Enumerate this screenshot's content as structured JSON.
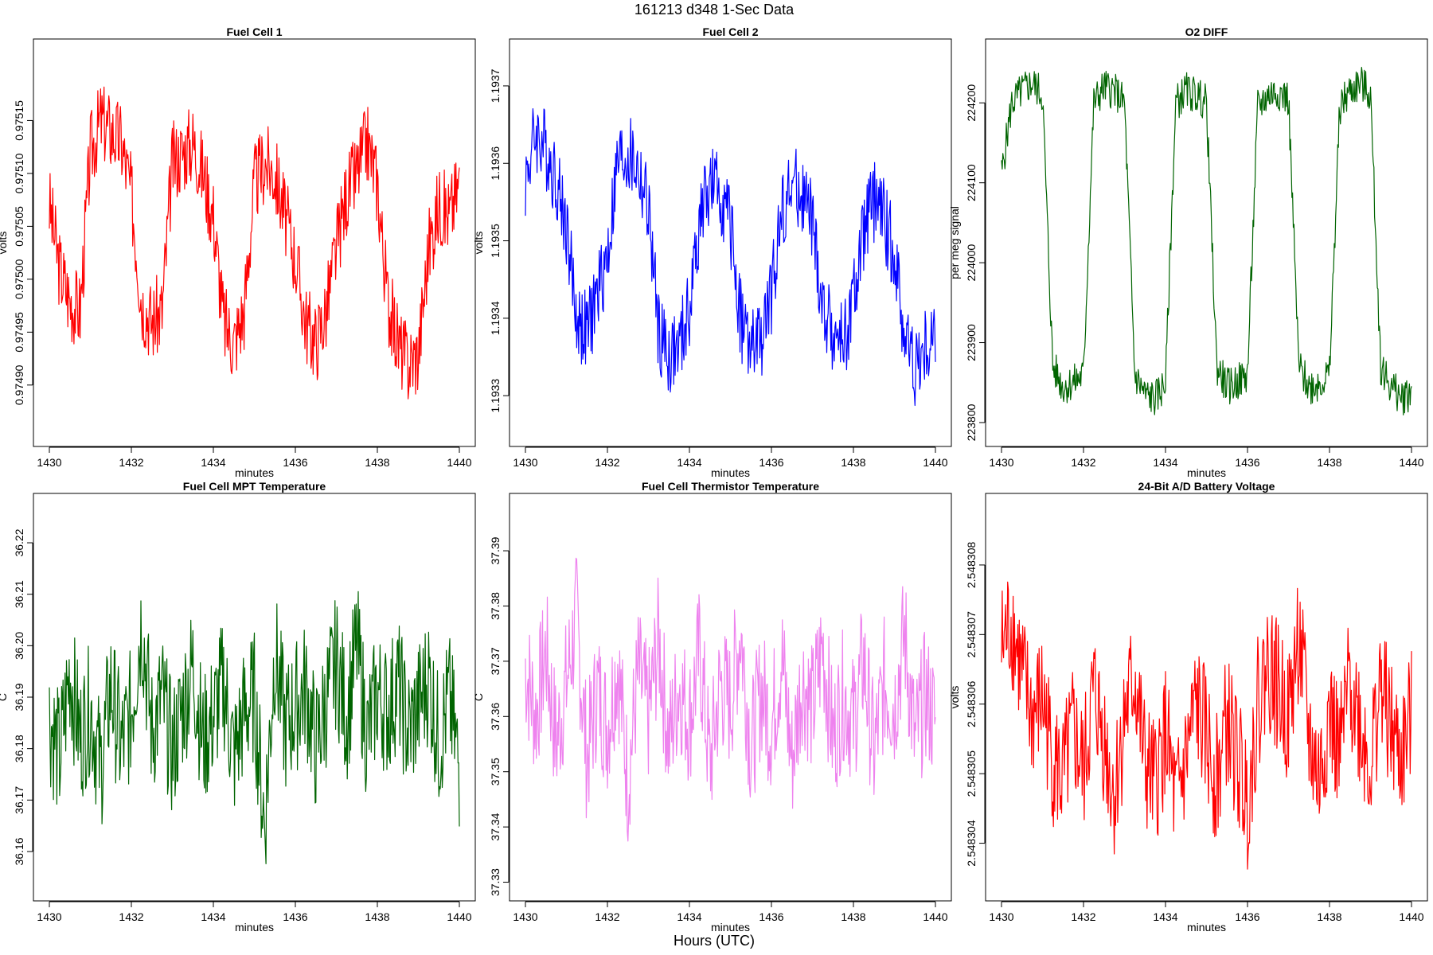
{
  "figure": {
    "title": "161213   d348   1-Sec Data",
    "xcaption": "Hours (UTC)"
  },
  "chart_data": [
    {
      "type": "line",
      "title": "Fuel Cell 1",
      "xlabel": "minutes",
      "ylabel": "volts",
      "color": "#ff0000",
      "xlim": [
        1430,
        1440
      ],
      "ylim": [
        0.974857,
        0.975212
      ],
      "xticks": [
        "1430",
        "1432",
        "1434",
        "1436",
        "1438",
        "1440"
      ],
      "yticks": [
        "0.97490",
        "0.97495",
        "0.97500",
        "0.97505",
        "0.97510",
        "0.97515"
      ],
      "x": [
        1430,
        1430.25,
        1430.5,
        1430.75,
        1431,
        1431.25,
        1431.5,
        1431.75,
        1432,
        1432.25,
        1432.5,
        1432.75,
        1433,
        1433.25,
        1433.5,
        1433.75,
        1434,
        1434.25,
        1434.5,
        1434.75,
        1435,
        1435.25,
        1435.5,
        1435.75,
        1436,
        1436.25,
        1436.5,
        1436.75,
        1437,
        1437.25,
        1437.5,
        1437.75,
        1438,
        1438.25,
        1438.5,
        1438.75,
        1439,
        1439.25,
        1439.5,
        1439.75,
        1440
      ],
      "y": [
        0.97507,
        0.97501,
        0.97498,
        0.97497,
        0.97512,
        0.97515,
        0.97514,
        0.97513,
        0.97508,
        0.97498,
        0.97496,
        0.97497,
        0.97511,
        0.97512,
        0.97513,
        0.9751,
        0.97506,
        0.97496,
        0.97494,
        0.97497,
        0.97509,
        0.97511,
        0.9751,
        0.97506,
        0.97502,
        0.97496,
        0.97494,
        0.97497,
        0.97503,
        0.97508,
        0.9751,
        0.97513,
        0.97509,
        0.97498,
        0.97494,
        0.97492,
        0.97493,
        0.97503,
        0.97507,
        0.97506,
        0.97509
      ]
    },
    {
      "type": "line",
      "title": "Fuel Cell 2",
      "xlabel": "minutes",
      "ylabel": "volts",
      "color": "#0000ff",
      "xlim": [
        1430,
        1440
      ],
      "ylim": [
        1.193255,
        1.19374
      ],
      "xticks": [
        "1430",
        "1432",
        "1434",
        "1436",
        "1438",
        "1440"
      ],
      "yticks": [
        "1.1933",
        "1.1934",
        "1.1935",
        "1.1936",
        "1.1937"
      ],
      "x": [
        1430,
        1430.25,
        1430.5,
        1430.75,
        1431,
        1431.25,
        1431.5,
        1431.75,
        1432,
        1432.25,
        1432.5,
        1432.75,
        1433,
        1433.25,
        1433.5,
        1433.75,
        1434,
        1434.25,
        1434.5,
        1434.75,
        1435,
        1435.25,
        1435.5,
        1435.75,
        1436,
        1436.25,
        1436.5,
        1436.75,
        1437,
        1437.25,
        1437.5,
        1437.75,
        1438,
        1438.25,
        1438.5,
        1438.75,
        1439,
        1439.25,
        1439.5,
        1439.75,
        1440
      ],
      "y": [
        1.19358,
        1.19364,
        1.19362,
        1.19358,
        1.19352,
        1.1934,
        1.19338,
        1.19343,
        1.19348,
        1.1936,
        1.19361,
        1.19359,
        1.19354,
        1.19338,
        1.19335,
        1.19336,
        1.19341,
        1.19353,
        1.19357,
        1.19356,
        1.19352,
        1.1934,
        1.19336,
        1.19337,
        1.19343,
        1.19354,
        1.19357,
        1.19356,
        1.19352,
        1.19341,
        1.19338,
        1.19337,
        1.19342,
        1.19351,
        1.19355,
        1.19353,
        1.19348,
        1.19338,
        1.19334,
        1.19336,
        1.19338
      ]
    },
    {
      "type": "line",
      "title": "O2 DIFF",
      "xlabel": "minutes",
      "ylabel": "per meg signal",
      "color": "#006400",
      "xlim": [
        1430,
        1440
      ],
      "ylim": [
        223790,
        224260
      ],
      "xticks": [
        "1430",
        "1432",
        "1434",
        "1436",
        "1438",
        "1440"
      ],
      "yticks": [
        "223800",
        "223900",
        "224000",
        "224100",
        "224200"
      ],
      "x": [
        1430,
        1430.25,
        1430.5,
        1430.75,
        1431,
        1431.25,
        1431.5,
        1431.75,
        1432,
        1432.25,
        1432.5,
        1432.75,
        1433,
        1433.25,
        1433.5,
        1433.75,
        1434,
        1434.25,
        1434.5,
        1434.75,
        1435,
        1435.25,
        1435.5,
        1435.75,
        1436,
        1436.25,
        1436.5,
        1436.75,
        1437,
        1437.25,
        1437.5,
        1437.75,
        1438,
        1438.25,
        1438.5,
        1438.75,
        1439,
        1439.25,
        1439.5,
        1439.75,
        1440
      ],
      "y": [
        224110,
        224200,
        224215,
        224225,
        224210,
        223870,
        223845,
        223850,
        223860,
        224200,
        224220,
        224215,
        224200,
        223860,
        223835,
        223830,
        223850,
        224200,
        224215,
        224210,
        224200,
        223870,
        223845,
        223850,
        223860,
        224195,
        224210,
        224215,
        224205,
        223870,
        223845,
        223850,
        223860,
        224195,
        224215,
        224225,
        224210,
        223870,
        223845,
        223830,
        223840
      ]
    },
    {
      "type": "line",
      "title": "Fuel Cell MPT Temperature",
      "xlabel": "minutes",
      "ylabel": "C",
      "color": "#006400",
      "xlim": [
        1430,
        1440
      ],
      "ylim": [
        36.1535,
        36.2265
      ],
      "xticks": [
        "1430",
        "1432",
        "1434",
        "1436",
        "1438",
        "1440"
      ],
      "yticks": [
        "36.16",
        "36.17",
        "36.18",
        "36.19",
        "36.20",
        "36.21",
        "36.22"
      ],
      "x": [
        1430,
        1430.25,
        1430.5,
        1430.75,
        1431,
        1431.25,
        1431.5,
        1431.75,
        1432,
        1432.25,
        1432.5,
        1432.75,
        1433,
        1433.25,
        1433.5,
        1433.75,
        1434,
        1434.25,
        1434.5,
        1434.75,
        1435,
        1435.25,
        1435.5,
        1435.75,
        1436,
        1436.25,
        1436.5,
        1436.75,
        1437,
        1437.25,
        1437.5,
        1437.75,
        1438,
        1438.25,
        1438.5,
        1438.75,
        1439,
        1439.25,
        1439.5,
        1439.75,
        1440
      ],
      "y": [
        36.186,
        36.178,
        36.195,
        36.182,
        36.188,
        36.176,
        36.192,
        36.18,
        36.187,
        36.205,
        36.183,
        36.19,
        36.179,
        36.188,
        36.196,
        36.181,
        36.186,
        36.193,
        36.178,
        36.187,
        36.19,
        36.165,
        36.199,
        36.184,
        36.188,
        36.192,
        36.18,
        36.189,
        36.197,
        36.186,
        36.2,
        36.182,
        36.191,
        36.187,
        36.193,
        36.183,
        36.188,
        36.194,
        36.181,
        36.19,
        36.176
      ]
    },
    {
      "type": "line",
      "title": "Fuel Cell Thermistor Temperature",
      "xlabel": "minutes",
      "ylabel": "C",
      "color": "#ee82ee",
      "xlim": [
        1430,
        1440
      ],
      "ylim": [
        37.3295,
        37.3975
      ],
      "xticks": [
        "1430",
        "1432",
        "1434",
        "1436",
        "1438",
        "1440"
      ],
      "yticks": [
        "37.33",
        "37.34",
        "37.35",
        "37.36",
        "37.37",
        "37.38",
        "37.39"
      ],
      "x": [
        1430,
        1430.25,
        1430.5,
        1430.75,
        1431,
        1431.25,
        1431.5,
        1431.75,
        1432,
        1432.25,
        1432.5,
        1432.75,
        1433,
        1433.25,
        1433.5,
        1433.75,
        1434,
        1434.25,
        1434.5,
        1434.75,
        1435,
        1435.25,
        1435.5,
        1435.75,
        1436,
        1436.25,
        1436.5,
        1436.75,
        1437,
        1437.25,
        1437.5,
        1437.75,
        1438,
        1438.25,
        1438.5,
        1438.75,
        1439,
        1439.25,
        1439.5,
        1439.75,
        1440
      ],
      "y": [
        37.369,
        37.36,
        37.372,
        37.355,
        37.366,
        37.378,
        37.352,
        37.365,
        37.358,
        37.37,
        37.348,
        37.368,
        37.36,
        37.374,
        37.355,
        37.366,
        37.359,
        37.372,
        37.351,
        37.366,
        37.362,
        37.376,
        37.354,
        37.365,
        37.358,
        37.371,
        37.352,
        37.367,
        37.361,
        37.373,
        37.356,
        37.364,
        37.359,
        37.37,
        37.353,
        37.366,
        37.362,
        37.375,
        37.355,
        37.364,
        37.359
      ]
    },
    {
      "type": "line",
      "title": "24-Bit A/D Battery Voltage",
      "xlabel": "minutes",
      "ylabel": "volts",
      "color": "#ff0000",
      "xlim": [
        1430,
        1440
      ],
      "ylim": [
        2.5483034,
        2.5483088
      ],
      "xticks": [
        "1430",
        "1432",
        "1434",
        "1436",
        "1438",
        "1440"
      ],
      "yticks": [
        "2.548304",
        "2.548305",
        "2.548306",
        "2.548307",
        "2.548308"
      ],
      "x": [
        1430,
        1430.25,
        1430.5,
        1430.75,
        1431,
        1431.25,
        1431.5,
        1431.75,
        1432,
        1432.25,
        1432.5,
        1432.75,
        1433,
        1433.25,
        1433.5,
        1433.75,
        1434,
        1434.25,
        1434.5,
        1434.75,
        1435,
        1435.25,
        1435.5,
        1435.75,
        1436,
        1436.25,
        1436.5,
        1436.75,
        1437,
        1437.25,
        1437.5,
        1437.75,
        1438,
        1438.25,
        1438.5,
        1438.75,
        1439,
        1439.25,
        1439.5,
        1439.75,
        1440
      ],
      "y": [
        2.5483068,
        2.5483072,
        2.5483064,
        2.5483058,
        2.5483061,
        2.5483052,
        2.5483049,
        2.5483056,
        2.548305,
        2.5483062,
        2.5483055,
        2.5483047,
        2.5483058,
        2.5483064,
        2.5483051,
        2.5483048,
        2.5483056,
        2.5483045,
        2.5483052,
        2.548306,
        2.5483055,
        2.5483049,
        2.5483058,
        2.5483052,
        2.5483046,
        2.548306,
        2.5483066,
        2.5483062,
        2.5483058,
        2.548307,
        2.5483055,
        2.5483049,
        2.5483059,
        2.5483052,
        2.5483064,
        2.5483057,
        2.5483051,
        2.5483063,
        2.5483056,
        2.5483052,
        2.5483058
      ]
    }
  ]
}
